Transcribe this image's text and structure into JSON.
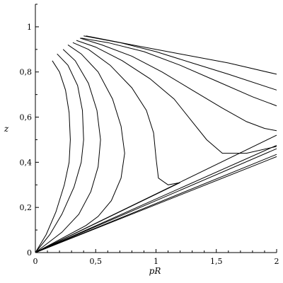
{
  "chart_data": {
    "type": "line",
    "title": "",
    "xlabel": "pR",
    "ylabel": "z",
    "xlim": [
      0,
      2
    ],
    "ylim": [
      0,
      1.1
    ],
    "x_ticks": [
      0,
      0.5,
      1,
      1.5,
      2
    ],
    "x_tick_labels": [
      "0",
      "0,5",
      "1",
      "1,5",
      "2"
    ],
    "y_ticks": [
      0,
      0.2,
      0.4,
      0.6,
      0.8,
      1
    ],
    "y_tick_labels": [
      "0",
      "0,2",
      "0,4",
      "0,6",
      "0,8",
      "1"
    ],
    "grid": false,
    "series": [
      {
        "x": [
          0.14,
          0.2,
          0.25,
          0.28,
          0.29,
          0.28,
          0.24,
          0.17,
          0.09,
          0.0
        ],
        "y": [
          0.85,
          0.8,
          0.72,
          0.62,
          0.5,
          0.4,
          0.3,
          0.18,
          0.08,
          0.0
        ]
      },
      {
        "x": [
          0.18,
          0.27,
          0.35,
          0.39,
          0.4,
          0.38,
          0.32,
          0.22,
          0.12,
          0.0
        ],
        "y": [
          0.88,
          0.83,
          0.74,
          0.63,
          0.5,
          0.4,
          0.29,
          0.17,
          0.08,
          0.0
        ]
      },
      {
        "x": [
          0.23,
          0.33,
          0.44,
          0.51,
          0.54,
          0.52,
          0.46,
          0.36,
          0.22,
          0.0
        ],
        "y": [
          0.9,
          0.85,
          0.75,
          0.63,
          0.5,
          0.38,
          0.27,
          0.17,
          0.09,
          0.0
        ]
      },
      {
        "x": [
          0.27,
          0.38,
          0.52,
          0.64,
          0.71,
          0.74,
          0.71,
          0.63,
          0.52,
          0.42,
          0.0
        ],
        "y": [
          0.92,
          0.88,
          0.8,
          0.68,
          0.56,
          0.44,
          0.33,
          0.23,
          0.16,
          0.12,
          0.0
        ]
      },
      {
        "x": [
          0.31,
          0.44,
          0.62,
          0.8,
          0.92,
          0.98,
          1.0,
          1.02,
          1.1,
          1.2,
          0.0
        ],
        "y": [
          0.93,
          0.9,
          0.83,
          0.73,
          0.63,
          0.53,
          0.42,
          0.33,
          0.3,
          0.31,
          0.0
        ]
      },
      {
        "x": [
          0.34,
          0.5,
          0.72,
          0.95,
          1.15,
          1.3,
          1.42,
          1.55,
          1.75,
          2.0
        ],
        "y": [
          0.94,
          0.91,
          0.85,
          0.77,
          0.68,
          0.58,
          0.5,
          0.44,
          0.44,
          0.47
        ]
      },
      {
        "x": [
          0.37,
          0.55,
          0.8,
          1.05,
          1.3,
          1.55,
          1.75,
          1.9,
          2.0
        ],
        "y": [
          0.95,
          0.92,
          0.87,
          0.8,
          0.72,
          0.64,
          0.58,
          0.55,
          0.54
        ]
      },
      {
        "x": [
          0.38,
          0.6,
          0.9,
          1.2,
          1.5,
          1.8,
          2.0
        ],
        "y": [
          0.95,
          0.93,
          0.89,
          0.83,
          0.76,
          0.69,
          0.65
        ]
      },
      {
        "x": [
          0.4,
          0.7,
          1.0,
          1.3,
          1.6,
          2.0
        ],
        "y": [
          0.96,
          0.93,
          0.89,
          0.84,
          0.79,
          0.72
        ]
      },
      {
        "x": [
          0.42,
          0.8,
          1.2,
          1.6,
          2.0
        ],
        "y": [
          0.96,
          0.92,
          0.88,
          0.84,
          0.79
        ]
      },
      {
        "x": [
          0.0,
          2.0
        ],
        "y": [
          0.0,
          0.52
        ]
      },
      {
        "x": [
          0.0,
          2.0
        ],
        "y": [
          0.0,
          0.475
        ]
      },
      {
        "x": [
          0.0,
          2.0
        ],
        "y": [
          0.0,
          0.46
        ]
      },
      {
        "x": [
          0.0,
          2.0
        ],
        "y": [
          0.0,
          0.435
        ]
      },
      {
        "x": [
          0.0,
          2.0
        ],
        "y": [
          0.0,
          0.425
        ]
      }
    ]
  }
}
